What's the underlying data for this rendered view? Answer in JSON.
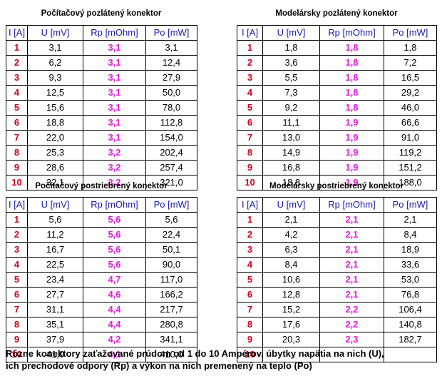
{
  "tables": [
    {
      "title": "Počítačový pozlátený konektor",
      "headers": [
        "I [A]",
        "U [mV]",
        "Rp [mOhm]",
        "Po [mW]"
      ],
      "rows": [
        [
          "1",
          "3,1",
          "3,1",
          "3,1"
        ],
        [
          "2",
          "6,2",
          "3,1",
          "12,4"
        ],
        [
          "3",
          "9,3",
          "3,1",
          "27,9"
        ],
        [
          "4",
          "12,5",
          "3,1",
          "50,0"
        ],
        [
          "5",
          "15,6",
          "3,1",
          "78,0"
        ],
        [
          "6",
          "18,8",
          "3,1",
          "112,8"
        ],
        [
          "7",
          "22,0",
          "3,1",
          "154,0"
        ],
        [
          "8",
          "25,3",
          "3,2",
          "202,4"
        ],
        [
          "9",
          "28,6",
          "3,2",
          "257,4"
        ],
        [
          "10",
          "32,1",
          "3,2",
          "321,0"
        ]
      ]
    },
    {
      "title": "Modelársky pozlátený konektor",
      "headers": [
        "I [A]",
        "U [mV]",
        "Rp [mOhm]",
        "Po [mW]"
      ],
      "rows": [
        [
          "1",
          "1,8",
          "1,8",
          "1,8"
        ],
        [
          "2",
          "3,6",
          "1,8",
          "7,2"
        ],
        [
          "3",
          "5,5",
          "1,8",
          "16,5"
        ],
        [
          "4",
          "7,3",
          "1,8",
          "29,2"
        ],
        [
          "5",
          "9,2",
          "1,8",
          "46,0"
        ],
        [
          "6",
          "11,1",
          "1,9",
          "66,6"
        ],
        [
          "7",
          "13,0",
          "1,9",
          "91,0"
        ],
        [
          "8",
          "14,9",
          "1,9",
          "119,2"
        ],
        [
          "9",
          "16,8",
          "1,9",
          "151,2"
        ],
        [
          "10",
          "18,8",
          "1,9",
          "188,0"
        ]
      ]
    },
    {
      "title": "Počítačový postriebrený konektor",
      "headers": [
        "I [A]",
        "U [mV]",
        "Rp [mOhm]",
        "Po [mW]"
      ],
      "rows": [
        [
          "1",
          "5,6",
          "5,6",
          "5,6"
        ],
        [
          "2",
          "11,2",
          "5,6",
          "22,4"
        ],
        [
          "3",
          "16,7",
          "5,6",
          "50,1"
        ],
        [
          "4",
          "22,5",
          "5,6",
          "90,0"
        ],
        [
          "5",
          "23,4",
          "4,7",
          "117,0"
        ],
        [
          "6",
          "27,7",
          "4,6",
          "166,2"
        ],
        [
          "7",
          "31,1",
          "4,4",
          "217,7"
        ],
        [
          "8",
          "35,1",
          "4,4",
          "280,8"
        ],
        [
          "9",
          "37,9",
          "4,2",
          "341,1"
        ],
        [
          "10",
          "41,0",
          "4,1",
          "410,0"
        ]
      ]
    },
    {
      "title": "Modelársky postriebrený konektor",
      "headers": [
        "I [A]",
        "U [mV]",
        "Rp [mOhm]",
        "Po [mW]"
      ],
      "rows": [
        [
          "1",
          "2,1",
          "2,1",
          "2,1"
        ],
        [
          "2",
          "4,2",
          "2,1",
          "8,4"
        ],
        [
          "3",
          "6,3",
          "2,1",
          "18,9"
        ],
        [
          "4",
          "8,4",
          "2,1",
          "33,6"
        ],
        [
          "5",
          "10,6",
          "2,1",
          "53,0"
        ],
        [
          "6",
          "12,8",
          "2,1",
          "76,8"
        ],
        [
          "7",
          "15,2",
          "2,2",
          "106,4"
        ],
        [
          "8",
          "17,6",
          "2,2",
          "140,8"
        ],
        [
          "9",
          "20,3",
          "2,3",
          "182,7"
        ],
        [
          "10",
          "",
          "",
          ""
        ]
      ]
    }
  ],
  "caption": {
    "line1": "Rôzne konektory zaťažované prúdom od 1 do 10 Ampérov, úbytky napätia na nich (U),",
    "line2": "ich prechodové odpory (Rp) a výkon na nich premenený na teplo (Po)"
  }
}
